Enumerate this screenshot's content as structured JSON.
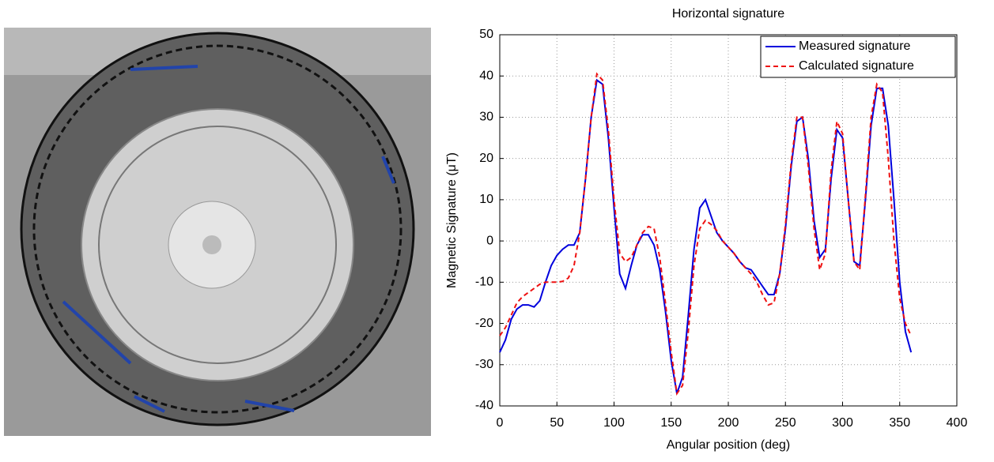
{
  "chart_data": {
    "type": "line",
    "title": "Horizontal signature",
    "x_label": "Angular position (deg)",
    "y_label": "Magnetic Signature (μT)",
    "x": [
      0,
      5,
      10,
      15,
      20,
      25,
      30,
      35,
      40,
      45,
      50,
      55,
      60,
      65,
      70,
      75,
      80,
      85,
      90,
      95,
      100,
      105,
      110,
      115,
      120,
      125,
      130,
      135,
      140,
      145,
      150,
      155,
      160,
      165,
      170,
      175,
      180,
      185,
      190,
      195,
      200,
      205,
      210,
      215,
      220,
      225,
      230,
      235,
      240,
      245,
      250,
      255,
      260,
      265,
      270,
      275,
      280,
      285,
      290,
      295,
      300,
      305,
      310,
      315,
      320,
      325,
      330,
      335,
      340,
      345,
      350,
      355,
      360
    ],
    "series": [
      {
        "name": "Measured signature",
        "color": "#0000dd",
        "dash": "solid",
        "values": [
          -27,
          -24,
          -19,
          -16.5,
          -15.5,
          -15.5,
          -16,
          -14.5,
          -10,
          -6,
          -3.5,
          -2,
          -1,
          -1,
          2,
          15,
          30,
          39,
          38,
          25,
          8,
          -8,
          -11.5,
          -6,
          -1,
          1.5,
          1.5,
          -1,
          -7,
          -17,
          -29,
          -37,
          -33,
          -18,
          -2,
          8,
          10,
          6,
          2,
          0,
          -1.5,
          -3,
          -5,
          -6.5,
          -7,
          -9,
          -11,
          -13,
          -13,
          -8,
          3,
          18,
          29,
          30,
          20,
          5,
          -4,
          -2,
          15,
          27,
          25,
          10,
          -5,
          -6,
          10,
          28,
          37,
          37,
          28,
          10,
          -10,
          -22,
          -27
        ]
      },
      {
        "name": "Calculated signature",
        "color": "#ee1111",
        "dash": "dashed",
        "values": [
          -23,
          -21,
          -18,
          -15,
          -13.5,
          -12.5,
          -11.5,
          -10.5,
          -10,
          -10,
          -10,
          -9.8,
          -9,
          -6,
          2,
          15,
          30,
          40.5,
          39,
          27,
          10,
          -3,
          -5,
          -4,
          -1,
          2,
          3.5,
          3,
          -4,
          -15,
          -27,
          -37,
          -35,
          -22,
          -6,
          3,
          5,
          4,
          2.5,
          0,
          -1.5,
          -3,
          -5,
          -6.5,
          -8,
          -10,
          -13,
          -15.5,
          -15,
          -8,
          4,
          19,
          30,
          30,
          18,
          3,
          -7,
          -3,
          17,
          29,
          26,
          10,
          -5,
          -7,
          11,
          30,
          38,
          36,
          20,
          0,
          -14,
          -20,
          -23
        ]
      }
    ],
    "xlim": [
      0,
      400
    ],
    "xticks": [
      0,
      50,
      100,
      150,
      200,
      250,
      300,
      350,
      400
    ],
    "ylim": [
      -40,
      50
    ],
    "yticks": [
      -40,
      -30,
      -20,
      -10,
      0,
      10,
      20,
      30,
      40,
      50
    ],
    "grid": true,
    "legend": "upper right"
  }
}
